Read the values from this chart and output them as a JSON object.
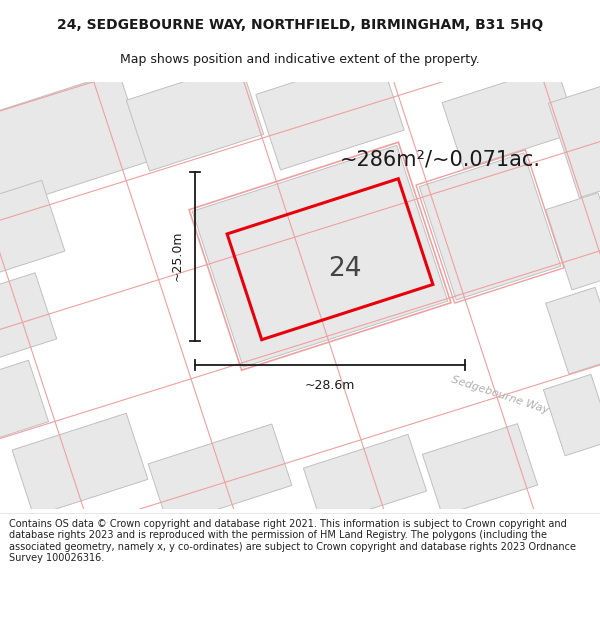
{
  "title_line1": "24, SEDGEBOURNE WAY, NORTHFIELD, BIRMINGHAM, B31 5HQ",
  "title_line2": "Map shows position and indicative extent of the property.",
  "area_text": "~286m²/~0.071ac.",
  "number_label": "24",
  "dim_width": "~28.6m",
  "dim_height": "~25.0m",
  "street_label": "Sedgebourne Way",
  "footer_text": "Contains OS data © Crown copyright and database right 2021. This information is subject to Crown copyright and database rights 2023 and is reproduced with the permission of HM Land Registry. The polygons (including the associated geometry, namely x, y co-ordinates) are subject to Crown copyright and database rights 2023 Ordnance Survey 100026316.",
  "map_bg": "#ffffff",
  "page_bg": "#ffffff",
  "building_fill": "#e8e8e8",
  "building_edge": "#c0c0c0",
  "plot_outline_red": "#e8000a",
  "plot_boundary_color": "#f0a0a0",
  "dim_line_color": "#1a1a1a",
  "title_color": "#1a1a1a",
  "footer_color": "#222222",
  "street_label_color": "#b0b0b0",
  "area_text_color": "#1a1a1a",
  "number_color": "#444444",
  "title_fontsize": 10,
  "subtitle_fontsize": 9,
  "area_fontsize": 15,
  "number_fontsize": 19,
  "dim_fontsize": 9,
  "street_fontsize": 8,
  "footer_fontsize": 7
}
